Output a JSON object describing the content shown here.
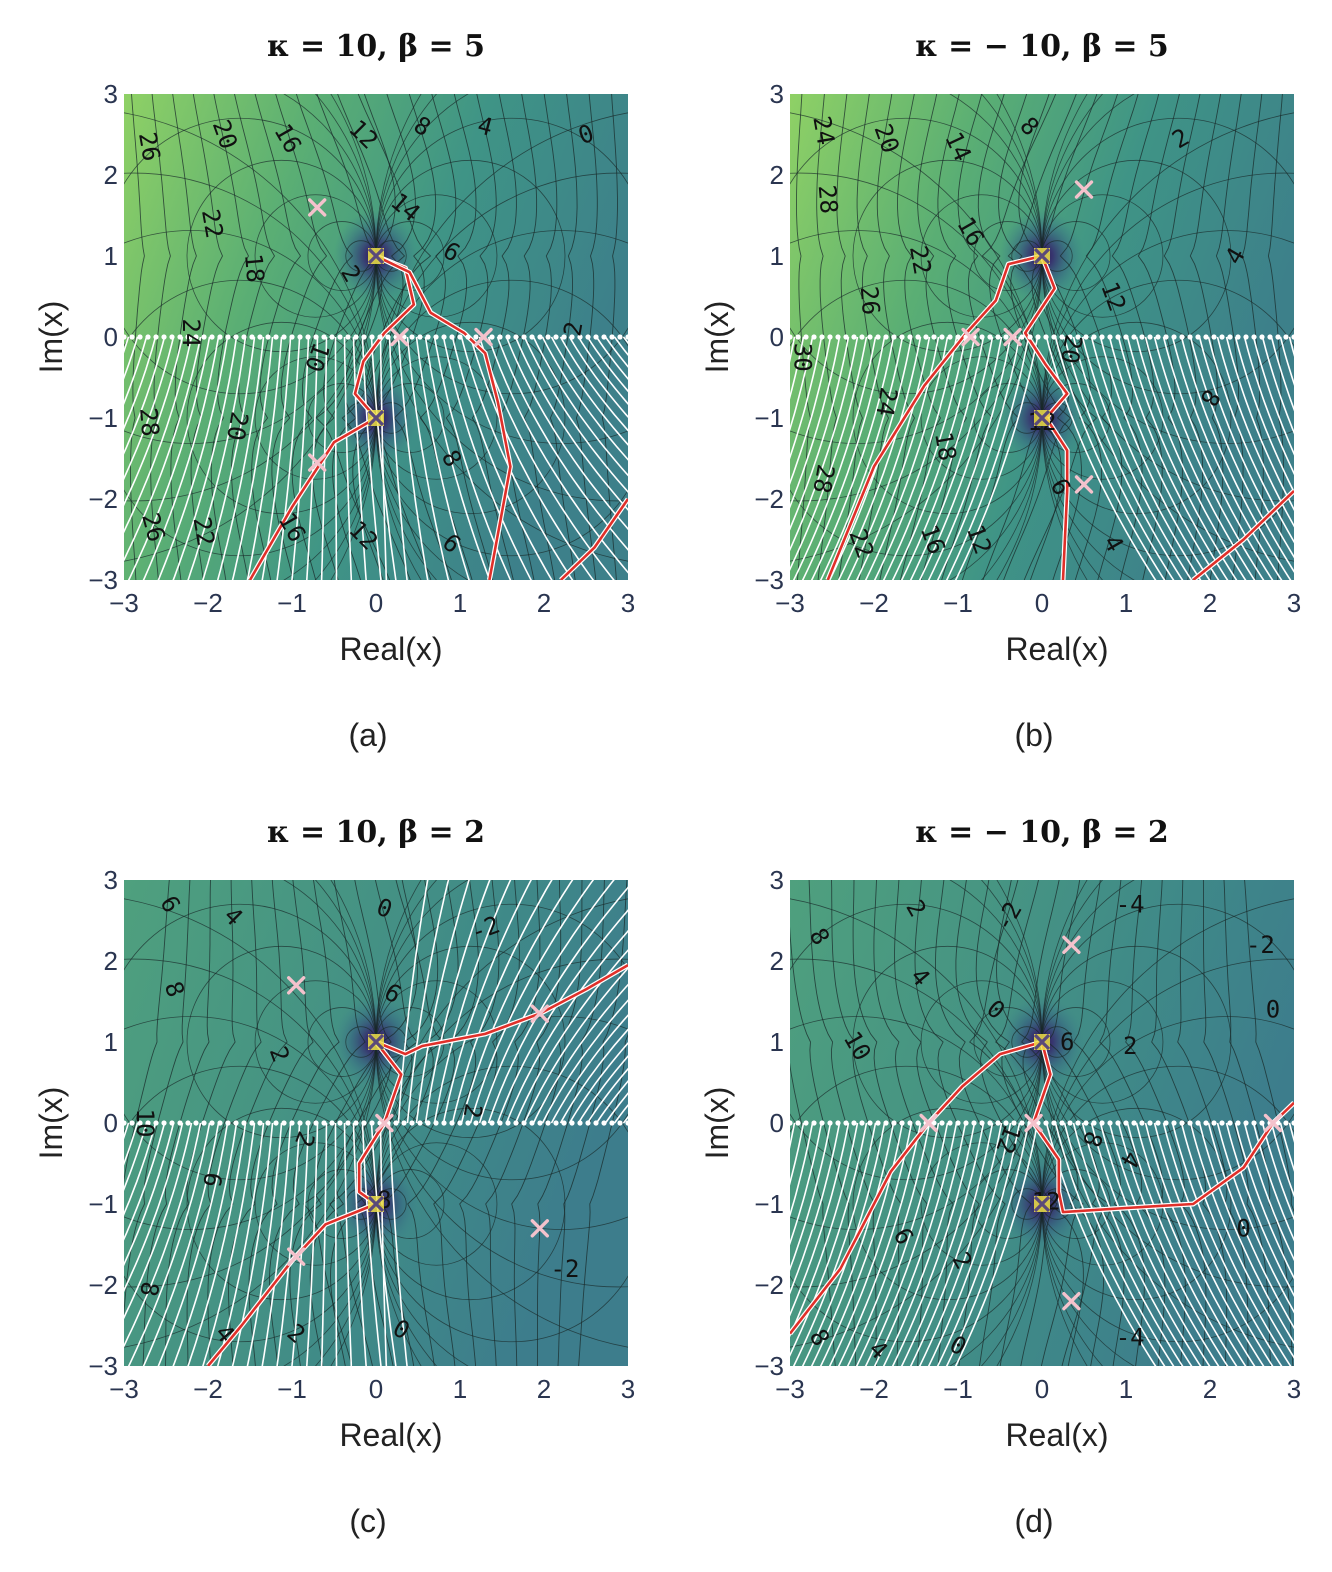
{
  "figure": {
    "panels": [
      {
        "id": "a",
        "title": "κ = 10, β = 5",
        "caption": "(a)"
      },
      {
        "id": "b",
        "title": "κ = − 10, β = 5",
        "caption": "(b)"
      },
      {
        "id": "c",
        "title": "κ = 10, β = 2",
        "caption": "(c)"
      },
      {
        "id": "d",
        "title": "κ = − 10, β = 2",
        "caption": "(d)"
      }
    ]
  },
  "chart_data": [
    {
      "panel": "a",
      "type": "heatmap",
      "title": "κ = 10, β = 5",
      "caption": "(a)",
      "xlabel": "Real(x)",
      "ylabel": "Im(x)",
      "xlim": [
        -3,
        3
      ],
      "ylim": [
        -3,
        3
      ],
      "xticks": [
        -3,
        -2,
        -1,
        0,
        1,
        2,
        3
      ],
      "yticks": [
        -3,
        -2,
        -1,
        0,
        1,
        2,
        3
      ],
      "kappa": 10,
      "beta": 5,
      "poles": [
        [
          0,
          1
        ],
        [
          0,
          -1
        ]
      ],
      "critical_points": [
        [
          -0.7,
          1.6
        ],
        [
          0.28,
          0
        ],
        [
          1.28,
          0
        ],
        [
          -0.7,
          -1.55
        ]
      ],
      "contour_labels": [
        {
          "text": "26",
          "x": -2.7,
          "y": 2.35,
          "rot": 80
        },
        {
          "text": "20",
          "x": -1.8,
          "y": 2.5,
          "rot": 70
        },
        {
          "text": "16",
          "x": -1.05,
          "y": 2.45,
          "rot": 60
        },
        {
          "text": "12",
          "x": -0.15,
          "y": 2.5,
          "rot": 45
        },
        {
          "text": "8",
          "x": 0.55,
          "y": 2.6,
          "rot": 30
        },
        {
          "text": "4",
          "x": 1.3,
          "y": 2.6,
          "rot": 15
        },
        {
          "text": "0",
          "x": 2.5,
          "y": 2.5,
          "rot": -20
        },
        {
          "text": "14",
          "x": 0.35,
          "y": 1.6,
          "rot": 40
        },
        {
          "text": "22",
          "x": -1.95,
          "y": 1.4,
          "rot": 80
        },
        {
          "text": "18",
          "x": -1.45,
          "y": 0.85,
          "rot": 85
        },
        {
          "text": "6",
          "x": 0.9,
          "y": 1.05,
          "rot": 30
        },
        {
          "text": "2",
          "x": -0.3,
          "y": 0.78,
          "rot": 60
        },
        {
          "text": "24",
          "x": -2.2,
          "y": 0.05,
          "rot": 90
        },
        {
          "text": "2",
          "x": 2.35,
          "y": 0.1,
          "rot": -80
        },
        {
          "text": "10",
          "x": -0.7,
          "y": -0.25,
          "rot": 110
        },
        {
          "text": "28",
          "x": -2.7,
          "y": -1.05,
          "rot": 85
        },
        {
          "text": "20",
          "x": -1.65,
          "y": -1.1,
          "rot": 100
        },
        {
          "text": "8",
          "x": 0.9,
          "y": -1.5,
          "rot": 60
        },
        {
          "text": "26",
          "x": -2.65,
          "y": -2.35,
          "rot": 75
        },
        {
          "text": "22",
          "x": -2.05,
          "y": -2.4,
          "rot": 80
        },
        {
          "text": "16",
          "x": -1.0,
          "y": -2.35,
          "rot": 60
        },
        {
          "text": "12",
          "x": -0.15,
          "y": -2.45,
          "rot": 45
        },
        {
          "text": "6",
          "x": 0.9,
          "y": -2.55,
          "rot": 40
        }
      ]
    },
    {
      "panel": "b",
      "type": "heatmap",
      "title": "κ = − 10, β = 5",
      "caption": "(b)",
      "xlabel": "Real(x)",
      "ylabel": "Im(x)",
      "xlim": [
        -3,
        3
      ],
      "ylim": [
        -3,
        3
      ],
      "xticks": [
        -3,
        -2,
        -1,
        0,
        1,
        2,
        3
      ],
      "yticks": [
        -3,
        -2,
        -1,
        0,
        1,
        2,
        3
      ],
      "kappa": -10,
      "beta": 5,
      "poles": [
        [
          0,
          1
        ],
        [
          0,
          -1
        ]
      ],
      "critical_points": [
        [
          0.5,
          1.82
        ],
        [
          -0.85,
          0
        ],
        [
          -0.35,
          0
        ],
        [
          0.5,
          -1.82
        ]
      ],
      "contour_labels": [
        {
          "text": "24",
          "x": -2.6,
          "y": 2.55,
          "rot": 80
        },
        {
          "text": "20",
          "x": -1.85,
          "y": 2.45,
          "rot": 70
        },
        {
          "text": "14",
          "x": -1.0,
          "y": 2.35,
          "rot": 65
        },
        {
          "text": "8",
          "x": -0.15,
          "y": 2.6,
          "rot": 45
        },
        {
          "text": "2",
          "x": 1.65,
          "y": 2.45,
          "rot": -30
        },
        {
          "text": "28",
          "x": -2.55,
          "y": 1.7,
          "rot": 85
        },
        {
          "text": "16",
          "x": -0.85,
          "y": 1.3,
          "rot": 60
        },
        {
          "text": "22",
          "x": -1.45,
          "y": 0.95,
          "rot": 80
        },
        {
          "text": "4",
          "x": 2.3,
          "y": 1.0,
          "rot": -60
        },
        {
          "text": "26",
          "x": -2.05,
          "y": 0.45,
          "rot": 85
        },
        {
          "text": "12",
          "x": 0.85,
          "y": 0.5,
          "rot": 70
        },
        {
          "text": "30",
          "x": -2.85,
          "y": -0.25,
          "rot": 90
        },
        {
          "text": "20",
          "x": 0.35,
          "y": -0.15,
          "rot": 100
        },
        {
          "text": "24",
          "x": -1.85,
          "y": -0.8,
          "rot": 100
        },
        {
          "text": "8",
          "x": 2.0,
          "y": -0.75,
          "rot": 120
        },
        {
          "text": "12",
          "x": 0.0,
          "y": -1.05,
          "rot": 0
        },
        {
          "text": "18",
          "x": -1.15,
          "y": -1.35,
          "rot": 80
        },
        {
          "text": "28",
          "x": -2.6,
          "y": -1.75,
          "rot": 100
        },
        {
          "text": "6",
          "x": 0.22,
          "y": -1.85,
          "rot": 60
        },
        {
          "text": "22",
          "x": -2.15,
          "y": -2.55,
          "rot": 70
        },
        {
          "text": "16",
          "x": -1.3,
          "y": -2.5,
          "rot": 70
        },
        {
          "text": "12",
          "x": -0.75,
          "y": -2.5,
          "rot": 70
        },
        {
          "text": "4",
          "x": 0.85,
          "y": -2.55,
          "rot": 60
        }
      ]
    },
    {
      "panel": "c",
      "type": "heatmap",
      "title": "κ = 10, β = 2",
      "caption": "(c)",
      "xlabel": "Real(x)",
      "ylabel": "Im(x)",
      "xlim": [
        -3,
        3
      ],
      "ylim": [
        -3,
        3
      ],
      "xticks": [
        -3,
        -2,
        -1,
        0,
        1,
        2,
        3
      ],
      "yticks": [
        -3,
        -2,
        -1,
        0,
        1,
        2,
        3
      ],
      "kappa": 10,
      "beta": 2,
      "poles": [
        [
          0,
          1
        ],
        [
          0,
          -1
        ]
      ],
      "critical_points": [
        [
          -0.95,
          1.7
        ],
        [
          1.95,
          1.35
        ],
        [
          0.1,
          0
        ],
        [
          -0.95,
          -1.65
        ],
        [
          1.95,
          -1.3
        ]
      ],
      "contour_labels": [
        {
          "text": "6",
          "x": -2.45,
          "y": 2.7,
          "rot": 60
        },
        {
          "text": "4",
          "x": -1.7,
          "y": 2.55,
          "rot": 45
        },
        {
          "text": "0",
          "x": 0.1,
          "y": 2.65,
          "rot": 20
        },
        {
          "text": "-2",
          "x": 1.3,
          "y": 2.4,
          "rot": -20
        },
        {
          "text": "8",
          "x": -2.4,
          "y": 1.65,
          "rot": 70
        },
        {
          "text": "6",
          "x": 0.2,
          "y": 1.6,
          "rot": 30
        },
        {
          "text": "2",
          "x": -1.15,
          "y": 0.85,
          "rot": 70
        },
        {
          "text": "10",
          "x": -2.75,
          "y": 0.0,
          "rot": 90
        },
        {
          "text": "2",
          "x": 1.15,
          "y": 0.15,
          "rot": 100
        },
        {
          "text": "2",
          "x": -0.85,
          "y": -0.2,
          "rot": 110
        },
        {
          "text": "6",
          "x": -1.95,
          "y": -0.7,
          "rot": 100
        },
        {
          "text": "8",
          "x": 0.1,
          "y": -0.95,
          "rot": 0
        },
        {
          "text": "-2",
          "x": 2.25,
          "y": -1.8,
          "rot": 0
        },
        {
          "text": "8",
          "x": -2.7,
          "y": -2.05,
          "rot": 100
        },
        {
          "text": "2",
          "x": -0.95,
          "y": -2.6,
          "rot": 40
        },
        {
          "text": "0",
          "x": 0.3,
          "y": -2.55,
          "rot": 30
        },
        {
          "text": "4",
          "x": -1.8,
          "y": -2.6,
          "rot": 50
        }
      ]
    },
    {
      "panel": "d",
      "type": "heatmap",
      "title": "κ = − 10, β = 2",
      "caption": "(d)",
      "xlabel": "Real(x)",
      "ylabel": "Im(x)",
      "xlim": [
        -3,
        3
      ],
      "ylim": [
        -3,
        3
      ],
      "xticks": [
        -3,
        -2,
        -1,
        0,
        1,
        2,
        3
      ],
      "yticks": [
        -3,
        -2,
        -1,
        0,
        1,
        2,
        3
      ],
      "kappa": -10,
      "beta": 2,
      "poles": [
        [
          0,
          1
        ],
        [
          0,
          -1
        ]
      ],
      "critical_points": [
        [
          0.35,
          2.2
        ],
        [
          -1.35,
          0
        ],
        [
          -0.1,
          0
        ],
        [
          2.75,
          0
        ],
        [
          0.35,
          -2.2
        ]
      ],
      "contour_labels": [
        {
          "text": "-4",
          "x": 1.05,
          "y": 2.7,
          "rot": 0
        },
        {
          "text": "-2",
          "x": -0.4,
          "y": 2.55,
          "rot": -60
        },
        {
          "text": "2",
          "x": -1.5,
          "y": 2.65,
          "rot": 60
        },
        {
          "text": "8",
          "x": -2.65,
          "y": 2.3,
          "rot": 60
        },
        {
          "text": "4",
          "x": -1.45,
          "y": 1.8,
          "rot": 50
        },
        {
          "text": "-2",
          "x": 2.6,
          "y": 2.2,
          "rot": 0
        },
        {
          "text": "0",
          "x": -0.55,
          "y": 1.4,
          "rot": 40
        },
        {
          "text": "0",
          "x": 2.75,
          "y": 1.4,
          "rot": 0
        },
        {
          "text": "6",
          "x": 0.3,
          "y": 1.0,
          "rot": 0
        },
        {
          "text": "2",
          "x": 1.05,
          "y": 0.95,
          "rot": 0
        },
        {
          "text": "10",
          "x": -2.2,
          "y": 0.95,
          "rot": 60
        },
        {
          "text": "12",
          "x": -0.4,
          "y": -0.2,
          "rot": 110
        },
        {
          "text": "8",
          "x": 0.6,
          "y": -0.2,
          "rot": 110
        },
        {
          "text": "4",
          "x": 1.05,
          "y": -0.45,
          "rot": 120
        },
        {
          "text": "12",
          "x": 0.05,
          "y": -0.97,
          "rot": 0
        },
        {
          "text": "0",
          "x": 2.4,
          "y": -1.3,
          "rot": 0
        },
        {
          "text": "6",
          "x": -1.65,
          "y": -1.4,
          "rot": 60
        },
        {
          "text": "2",
          "x": -0.95,
          "y": -1.7,
          "rot": 60
        },
        {
          "text": "8",
          "x": -2.65,
          "y": -2.65,
          "rot": 60
        },
        {
          "text": "4",
          "x": -1.95,
          "y": -2.8,
          "rot": 45
        },
        {
          "text": "0",
          "x": -1.0,
          "y": -2.75,
          "rot": 30
        },
        {
          "text": "-4",
          "x": 1.05,
          "y": -2.65,
          "rot": 0
        }
      ]
    }
  ]
}
